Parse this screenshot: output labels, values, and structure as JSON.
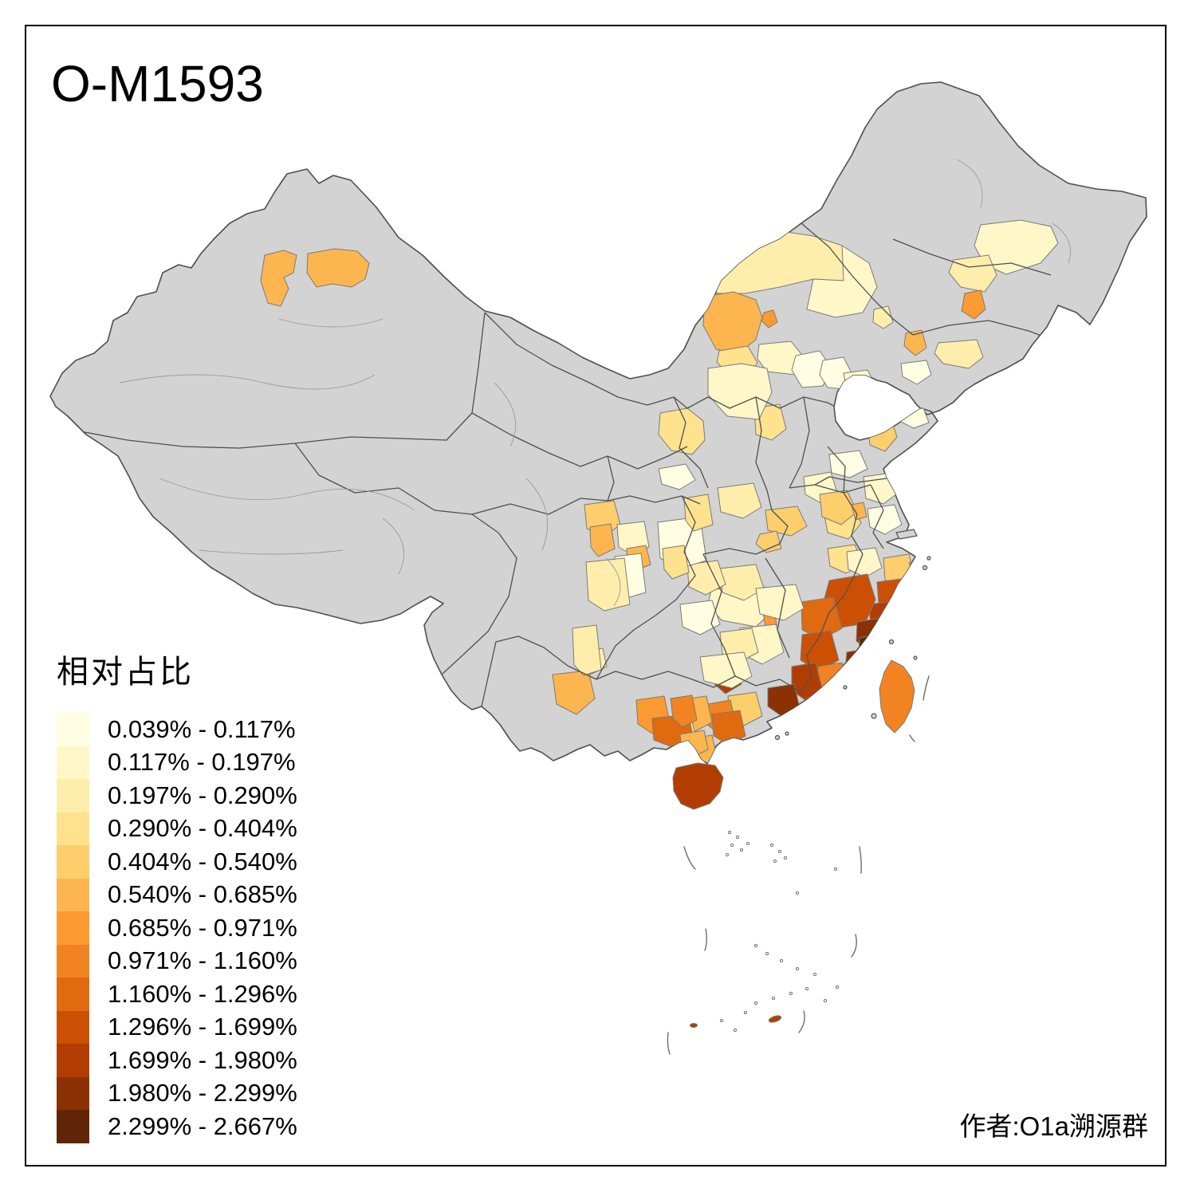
{
  "title": "O-M1593",
  "legend": {
    "title": "相对占比",
    "classes": [
      {
        "label": "0.039% - 0.117%",
        "color": "#FFFEE2"
      },
      {
        "label": "0.117% - 0.197%",
        "color": "#FFF7C8"
      },
      {
        "label": "0.197% - 0.290%",
        "color": "#FFEEAB"
      },
      {
        "label": "0.290% - 0.404%",
        "color": "#FEE28E"
      },
      {
        "label": "0.404% - 0.540%",
        "color": "#FDCE6C"
      },
      {
        "label": "0.540% - 0.685%",
        "color": "#FDB64F"
      },
      {
        "label": "0.685% - 0.971%",
        "color": "#FD9A31"
      },
      {
        "label": "0.971% - 1.160%",
        "color": "#F28322"
      },
      {
        "label": "1.160% - 1.296%",
        "color": "#E06A10"
      },
      {
        "label": "1.296% - 1.699%",
        "color": "#CC5004"
      },
      {
        "label": "1.699% - 1.980%",
        "color": "#B23D02"
      },
      {
        "label": "1.980% - 2.299%",
        "color": "#8C3104"
      },
      {
        "label": "2.299% - 2.667%",
        "color": "#5F2506"
      }
    ]
  },
  "attribution": "作者:O1a溯源群",
  "map": {
    "land_fill": "#D3D3D3",
    "boundary_color": "#4F4F4F",
    "patch_stroke": "#7A7A7A",
    "sea_fill": "#FFFFFF"
  }
}
